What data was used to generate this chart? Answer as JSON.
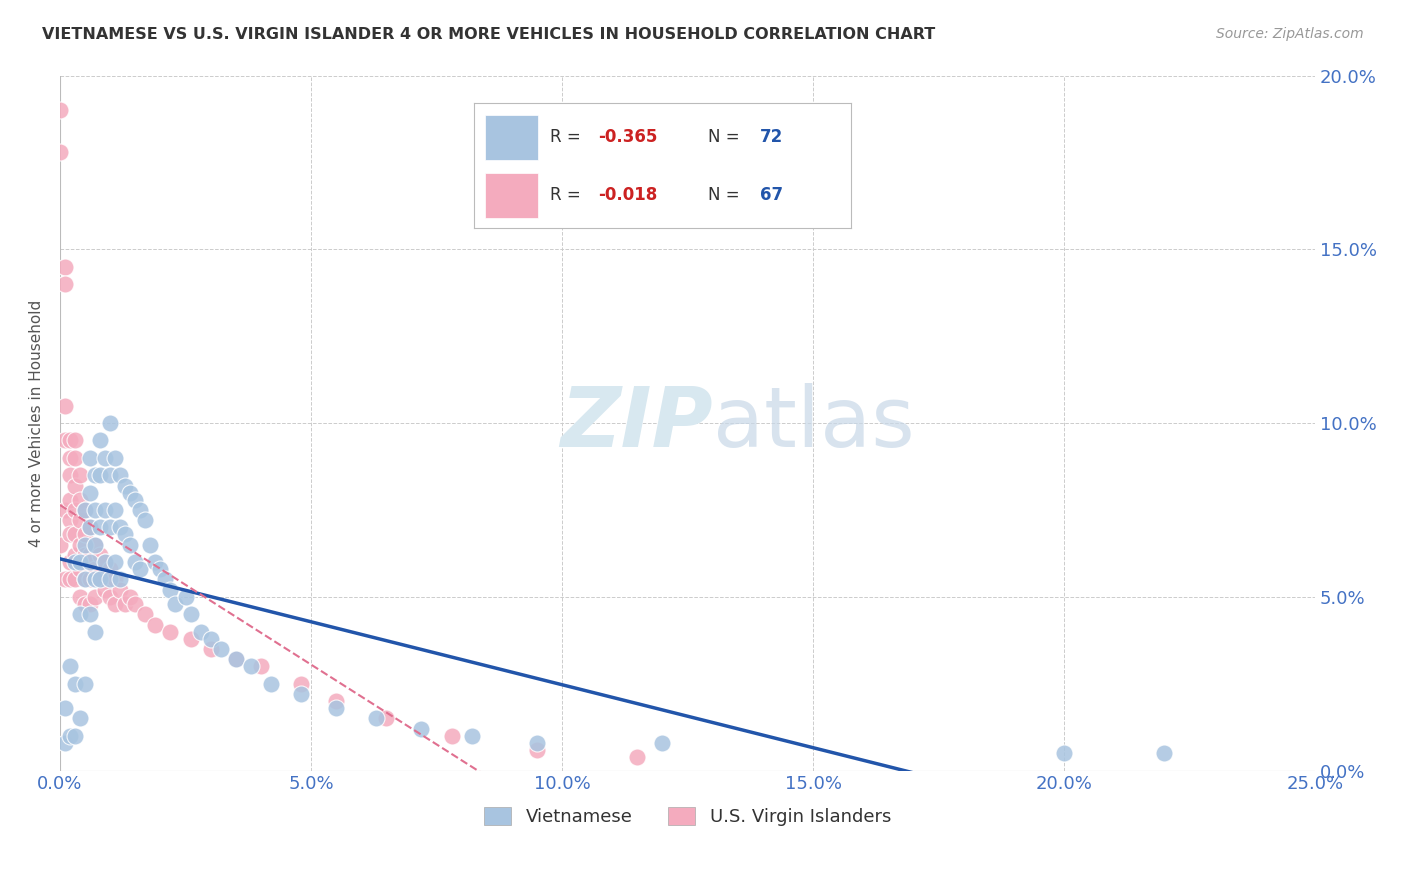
{
  "title": "VIETNAMESE VS U.S. VIRGIN ISLANDER 4 OR MORE VEHICLES IN HOUSEHOLD CORRELATION CHART",
  "source": "Source: ZipAtlas.com",
  "ylabel": "4 or more Vehicles in Household",
  "xlim": [
    0.0,
    0.25
  ],
  "ylim": [
    0.0,
    0.2
  ],
  "color_blue": "#A8C4E0",
  "color_pink": "#F4ABBE",
  "color_blue_line": "#2255AA",
  "color_pink_line": "#E07090",
  "color_axis_text": "#4472C4",
  "watermark_color": "#D8E8F0",
  "background_color": "#FFFFFF",
  "vietnamese_x": [
    0.001,
    0.001,
    0.002,
    0.002,
    0.003,
    0.003,
    0.003,
    0.004,
    0.004,
    0.004,
    0.005,
    0.005,
    0.005,
    0.005,
    0.006,
    0.006,
    0.006,
    0.006,
    0.006,
    0.007,
    0.007,
    0.007,
    0.007,
    0.007,
    0.008,
    0.008,
    0.008,
    0.008,
    0.009,
    0.009,
    0.009,
    0.01,
    0.01,
    0.01,
    0.01,
    0.011,
    0.011,
    0.011,
    0.012,
    0.012,
    0.012,
    0.013,
    0.013,
    0.014,
    0.014,
    0.015,
    0.015,
    0.016,
    0.016,
    0.017,
    0.018,
    0.019,
    0.02,
    0.021,
    0.022,
    0.023,
    0.025,
    0.026,
    0.028,
    0.03,
    0.032,
    0.035,
    0.038,
    0.042,
    0.048,
    0.055,
    0.063,
    0.072,
    0.082,
    0.095,
    0.12,
    0.2,
    0.22
  ],
  "vietnamese_y": [
    0.018,
    0.008,
    0.03,
    0.01,
    0.06,
    0.025,
    0.01,
    0.06,
    0.045,
    0.015,
    0.075,
    0.065,
    0.055,
    0.025,
    0.09,
    0.08,
    0.07,
    0.06,
    0.045,
    0.085,
    0.075,
    0.065,
    0.055,
    0.04,
    0.095,
    0.085,
    0.07,
    0.055,
    0.09,
    0.075,
    0.06,
    0.1,
    0.085,
    0.07,
    0.055,
    0.09,
    0.075,
    0.06,
    0.085,
    0.07,
    0.055,
    0.082,
    0.068,
    0.08,
    0.065,
    0.078,
    0.06,
    0.075,
    0.058,
    0.072,
    0.065,
    0.06,
    0.058,
    0.055,
    0.052,
    0.048,
    0.05,
    0.045,
    0.04,
    0.038,
    0.035,
    0.032,
    0.03,
    0.025,
    0.022,
    0.018,
    0.015,
    0.012,
    0.01,
    0.008,
    0.008,
    0.005,
    0.005
  ],
  "usvi_x": [
    0.0,
    0.0,
    0.0,
    0.001,
    0.001,
    0.001,
    0.001,
    0.001,
    0.001,
    0.002,
    0.002,
    0.002,
    0.002,
    0.002,
    0.002,
    0.002,
    0.002,
    0.003,
    0.003,
    0.003,
    0.003,
    0.003,
    0.003,
    0.003,
    0.004,
    0.004,
    0.004,
    0.004,
    0.004,
    0.004,
    0.005,
    0.005,
    0.005,
    0.005,
    0.005,
    0.006,
    0.006,
    0.006,
    0.006,
    0.007,
    0.007,
    0.007,
    0.008,
    0.008,
    0.009,
    0.009,
    0.01,
    0.01,
    0.011,
    0.011,
    0.012,
    0.013,
    0.014,
    0.015,
    0.017,
    0.019,
    0.022,
    0.026,
    0.03,
    0.035,
    0.04,
    0.048,
    0.055,
    0.065,
    0.078,
    0.095,
    0.115
  ],
  "usvi_y": [
    0.19,
    0.178,
    0.065,
    0.145,
    0.14,
    0.105,
    0.095,
    0.075,
    0.055,
    0.095,
    0.09,
    0.085,
    0.078,
    0.072,
    0.068,
    0.06,
    0.055,
    0.095,
    0.09,
    0.082,
    0.075,
    0.068,
    0.062,
    0.055,
    0.085,
    0.078,
    0.072,
    0.065,
    0.058,
    0.05,
    0.075,
    0.068,
    0.062,
    0.055,
    0.048,
    0.07,
    0.062,
    0.055,
    0.048,
    0.065,
    0.058,
    0.05,
    0.062,
    0.055,
    0.06,
    0.052,
    0.058,
    0.05,
    0.055,
    0.048,
    0.052,
    0.048,
    0.05,
    0.048,
    0.045,
    0.042,
    0.04,
    0.038,
    0.035,
    0.032,
    0.03,
    0.025,
    0.02,
    0.015,
    0.01,
    0.006,
    0.004
  ]
}
